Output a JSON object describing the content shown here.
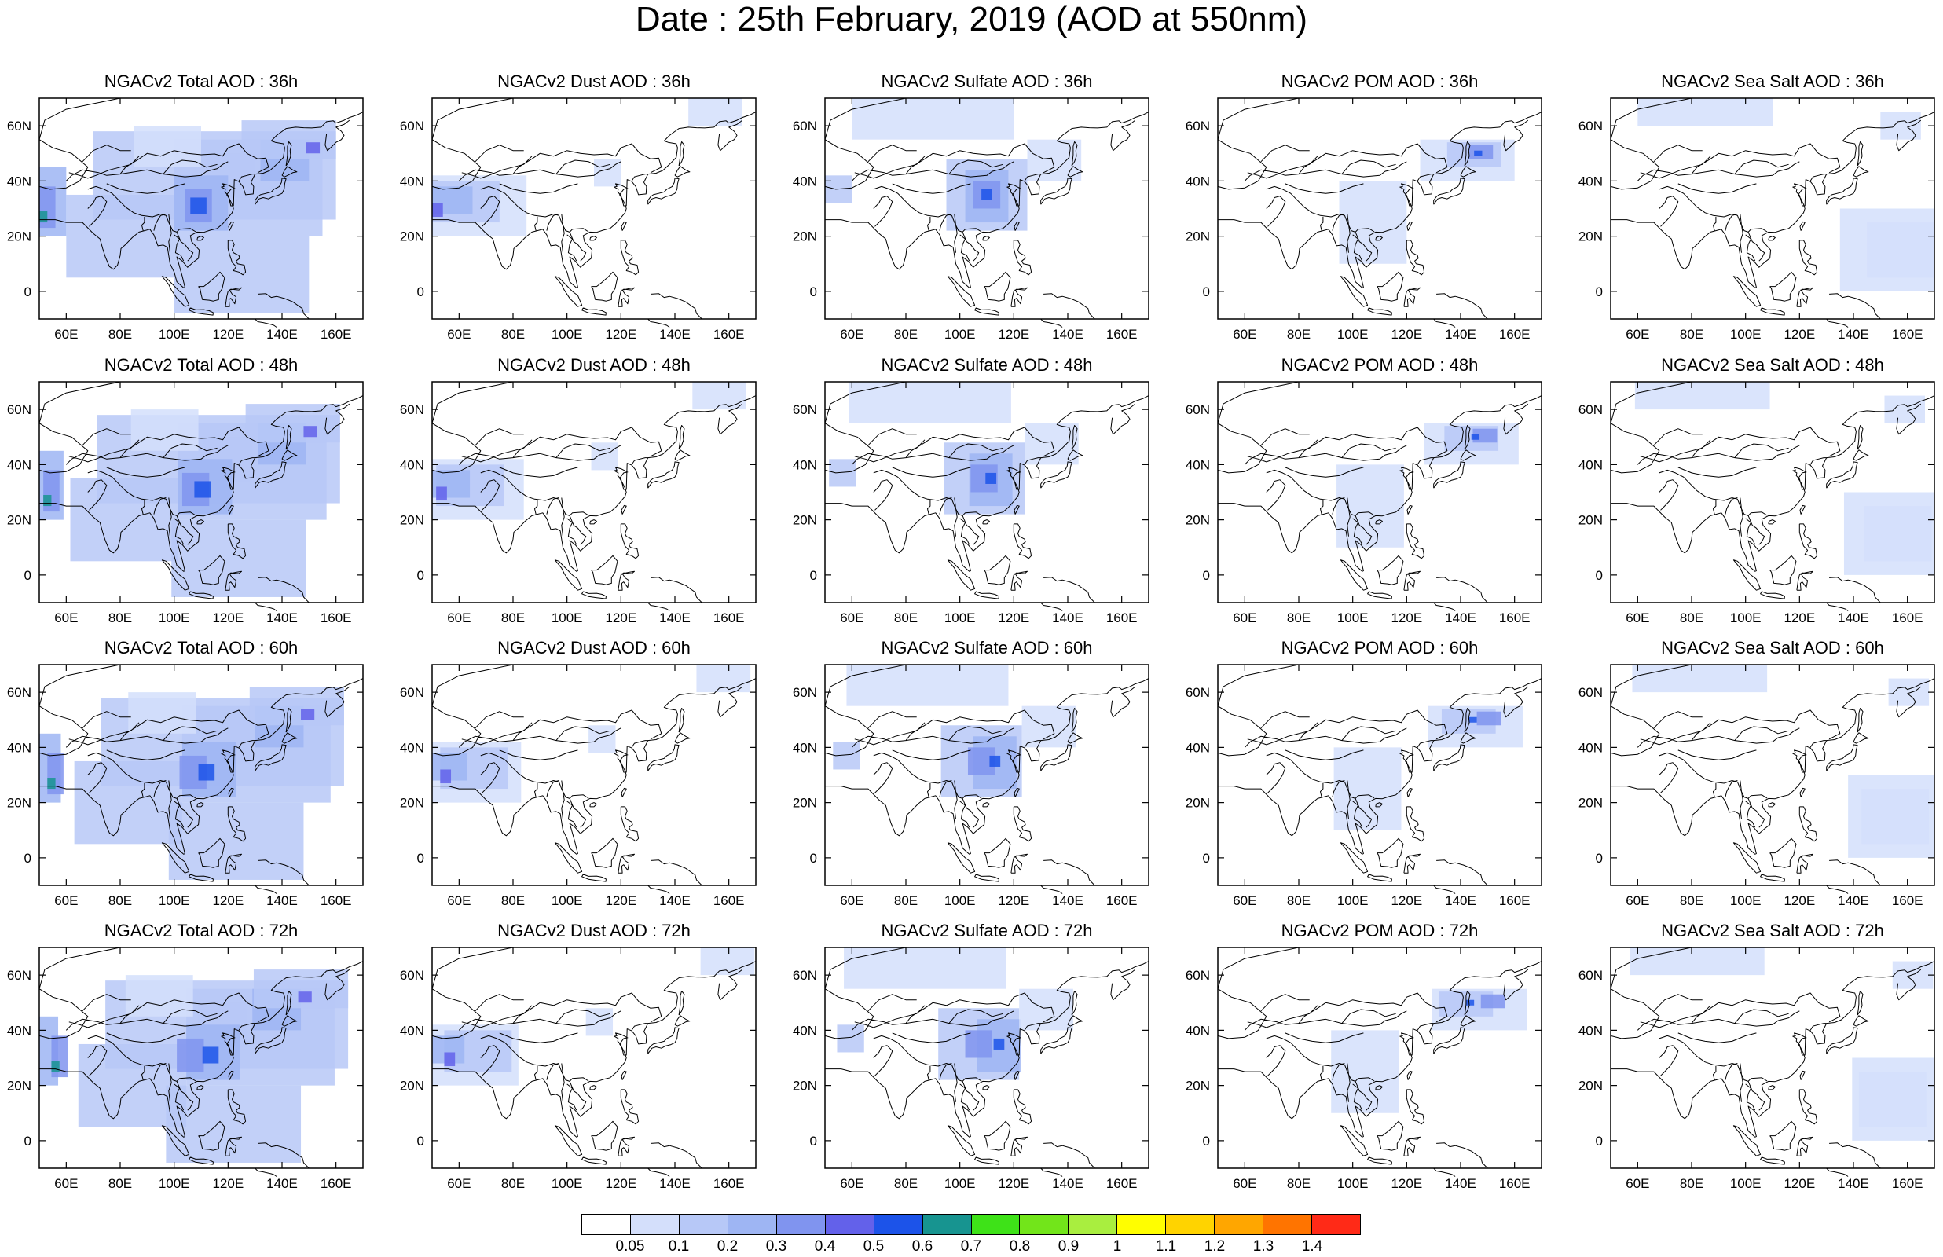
{
  "figure": {
    "title": "Date : 25th February, 2019 (AOD at 550nm)"
  },
  "panels": [
    {
      "title": "NGACv2 Total AOD : 36h",
      "species": "total",
      "hour": 36
    },
    {
      "title": "NGACv2 Dust AOD : 36h",
      "species": "dust",
      "hour": 36
    },
    {
      "title": "NGACv2 Sulfate AOD : 36h",
      "species": "sulfate",
      "hour": 36
    },
    {
      "title": "NGACv2 POM AOD : 36h",
      "species": "pom",
      "hour": 36
    },
    {
      "title": "NGACv2 Sea Salt AOD : 36h",
      "species": "seasalt",
      "hour": 36
    },
    {
      "title": "NGACv2 Total AOD : 48h",
      "species": "total",
      "hour": 48
    },
    {
      "title": "NGACv2 Dust AOD : 48h",
      "species": "dust",
      "hour": 48
    },
    {
      "title": "NGACv2 Sulfate AOD : 48h",
      "species": "sulfate",
      "hour": 48
    },
    {
      "title": "NGACv2 POM AOD : 48h",
      "species": "pom",
      "hour": 48
    },
    {
      "title": "NGACv2 Sea Salt AOD : 48h",
      "species": "seasalt",
      "hour": 48
    },
    {
      "title": "NGACv2 Total AOD : 60h",
      "species": "total",
      "hour": 60
    },
    {
      "title": "NGACv2 Dust AOD : 60h",
      "species": "dust",
      "hour": 60
    },
    {
      "title": "NGACv2 Sulfate AOD : 60h",
      "species": "sulfate",
      "hour": 60
    },
    {
      "title": "NGACv2 POM AOD : 60h",
      "species": "pom",
      "hour": 60
    },
    {
      "title": "NGACv2 Sea Salt AOD : 60h",
      "species": "seasalt",
      "hour": 60
    },
    {
      "title": "NGACv2 Total AOD : 72h",
      "species": "total",
      "hour": 72
    },
    {
      "title": "NGACv2 Dust AOD : 72h",
      "species": "dust",
      "hour": 72
    },
    {
      "title": "NGACv2 Sulfate AOD : 72h",
      "species": "sulfate",
      "hour": 72
    },
    {
      "title": "NGACv2 POM AOD : 72h",
      "species": "pom",
      "hour": 72
    },
    {
      "title": "NGACv2 Sea Salt  AOD : 72h",
      "species": "seasalt",
      "hour": 72
    }
  ],
  "map": {
    "lon_range": [
      50,
      170
    ],
    "lat_range": [
      -10,
      70
    ],
    "lon_ticks": [
      60,
      80,
      100,
      120,
      140,
      160
    ],
    "lon_tick_labels": [
      "60E",
      "80E",
      "100E",
      "120E",
      "140E",
      "160E"
    ],
    "lat_ticks": [
      0,
      20,
      40,
      60
    ],
    "lat_tick_labels": [
      "0",
      "20N",
      "40N",
      "60N"
    ]
  },
  "colorbar": {
    "labels": [
      "0.05",
      "0.1",
      "0.2",
      "0.3",
      "0.4",
      "0.5",
      "0.6",
      "0.7",
      "0.8",
      "0.9",
      "1",
      "1.1",
      "1.2",
      "1.3",
      "1.4"
    ],
    "colors": [
      "#ffffff",
      "#d4dffb",
      "#b7c8f7",
      "#9eb5f3",
      "#8094ef",
      "#6361ea",
      "#1c53e9",
      "#179490",
      "#3ee218",
      "#72e51a",
      "#a9ee3f",
      "#fffe00",
      "#ffd300",
      "#ffa600",
      "#ff7400",
      "#ff2a17"
    ]
  }
}
